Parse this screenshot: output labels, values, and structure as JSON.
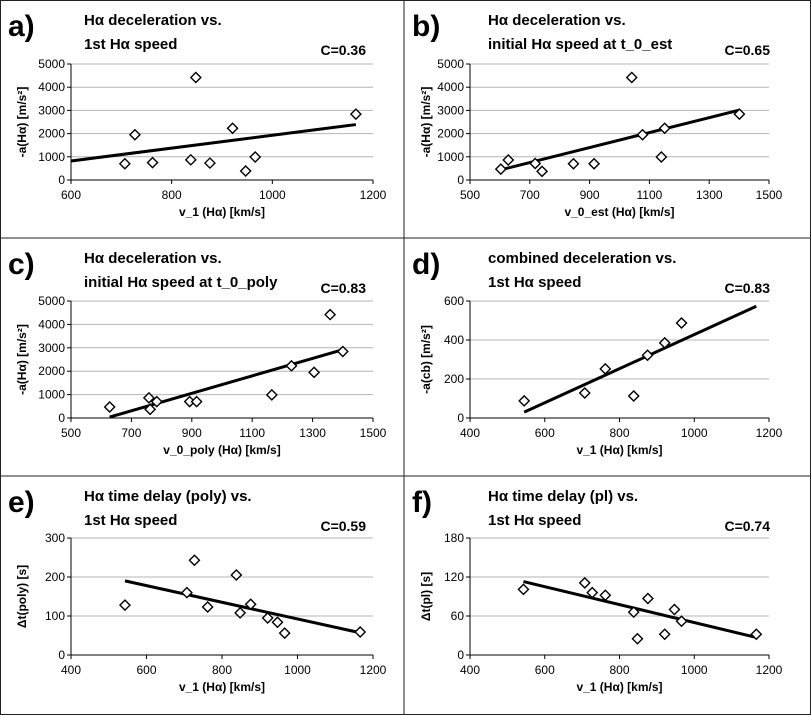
{
  "colors": {
    "background": "#ffffff",
    "ink": "#000000",
    "grid": "#b4b4b4",
    "marker_fill": "#ffffff"
  },
  "chart_data": [
    {
      "panel": "a)",
      "type": "scatter",
      "title_lines": [
        "Hα deceleration vs.",
        "1st Hα speed"
      ],
      "correlation": "C=0.36",
      "xlabel": "v_1 (Hα) [km/s]",
      "ylabel": "-a(Hα) [m/s²]",
      "xlim": [
        600,
        1200
      ],
      "ylim": [
        0,
        5000
      ],
      "xticks": [
        600,
        800,
        1000,
        1200
      ],
      "yticks": [
        0,
        1000,
        2000,
        3000,
        4000,
        5000
      ],
      "grid": "horizontal",
      "points": [
        [
          707,
          700
        ],
        [
          727,
          1950
        ],
        [
          762,
          750
        ],
        [
          838,
          870
        ],
        [
          848,
          4420
        ],
        [
          876,
          730
        ],
        [
          921,
          2230
        ],
        [
          947,
          390
        ],
        [
          966,
          990
        ],
        [
          1166,
          2840
        ]
      ],
      "fit_line": [
        [
          600,
          820
        ],
        [
          1166,
          2390
        ]
      ]
    },
    {
      "panel": "b)",
      "type": "scatter",
      "title_lines": [
        "Hα deceleration vs.",
        "initial Hα speed at t_0_est"
      ],
      "correlation": "C=0.65",
      "xlabel": "v_0_est (Hα) [km/s]",
      "ylabel": "-a(Hα) [m/s²]",
      "xlim": [
        500,
        1500
      ],
      "ylim": [
        0,
        5000
      ],
      "xticks": [
        500,
        700,
        900,
        1100,
        1300,
        1500
      ],
      "yticks": [
        0,
        1000,
        2000,
        3000,
        4000,
        5000
      ],
      "grid": "horizontal",
      "points": [
        [
          603,
          470
        ],
        [
          628,
          860
        ],
        [
          718,
          710
        ],
        [
          741,
          370
        ],
        [
          846,
          700
        ],
        [
          915,
          700
        ],
        [
          1041,
          4420
        ],
        [
          1077,
          1950
        ],
        [
          1140,
          990
        ],
        [
          1151,
          2230
        ],
        [
          1401,
          2840
        ]
      ],
      "fit_line": [
        [
          600,
          430
        ],
        [
          1400,
          3010
        ]
      ]
    },
    {
      "panel": "c)",
      "type": "scatter",
      "title_lines": [
        "Hα deceleration vs.",
        "initial Hα speed at t_0_poly"
      ],
      "correlation": "C=0.83",
      "xlabel": "v_0_poly (Hα) [km/s]",
      "ylabel": "-a(Hα) [m/s²]",
      "xlim": [
        500,
        1500
      ],
      "ylim": [
        0,
        5000
      ],
      "xticks": [
        500,
        700,
        900,
        1100,
        1300,
        1500
      ],
      "yticks": [
        0,
        1000,
        2000,
        3000,
        4000,
        5000
      ],
      "grid": "horizontal",
      "points": [
        [
          628,
          470
        ],
        [
          758,
          860
        ],
        [
          762,
          370
        ],
        [
          784,
          700
        ],
        [
          893,
          700
        ],
        [
          916,
          700
        ],
        [
          1165,
          990
        ],
        [
          1230,
          2230
        ],
        [
          1305,
          1950
        ],
        [
          1358,
          4420
        ],
        [
          1400,
          2840
        ]
      ],
      "fit_line": [
        [
          628,
          40
        ],
        [
          1400,
          2920
        ]
      ]
    },
    {
      "panel": "d)",
      "type": "scatter",
      "title_lines": [
        "combined deceleration vs.",
        "1st Hα speed"
      ],
      "correlation": "C=0.83",
      "xlabel": "v_1 (Hα) [km/s]",
      "ylabel": "-a(cb) [m/s²]",
      "xlim": [
        400,
        1200
      ],
      "ylim": [
        0,
        600
      ],
      "xticks": [
        400,
        600,
        800,
        1000,
        1200
      ],
      "yticks": [
        0,
        200,
        400,
        600
      ],
      "grid": "horizontal",
      "points": [
        [
          545,
          88
        ],
        [
          707,
          128
        ],
        [
          762,
          252
        ],
        [
          838,
          113
        ],
        [
          875,
          322
        ],
        [
          921,
          385
        ],
        [
          966,
          487
        ]
      ],
      "fit_line": [
        [
          545,
          30
        ],
        [
          1166,
          573
        ]
      ]
    },
    {
      "panel": "e)",
      "type": "scatter",
      "title_lines": [
        "Hα time delay (poly) vs.",
        "1st Hα speed"
      ],
      "correlation": "C=0.59",
      "xlabel": "v_1 (Hα) [km/s]",
      "ylabel": "Δt(poly) [s]",
      "xlim": [
        400,
        1200
      ],
      "ylim": [
        0,
        300
      ],
      "xticks": [
        400,
        600,
        800,
        1000,
        1200
      ],
      "yticks": [
        0,
        100,
        200,
        300
      ],
      "grid": "horizontal",
      "points": [
        [
          543,
          128
        ],
        [
          707,
          160
        ],
        [
          727,
          243
        ],
        [
          762,
          123
        ],
        [
          838,
          205
        ],
        [
          848,
          108
        ],
        [
          876,
          130
        ],
        [
          921,
          95
        ],
        [
          947,
          84
        ],
        [
          966,
          56
        ],
        [
          1166,
          59
        ]
      ],
      "fit_line": [
        [
          543,
          190
        ],
        [
          1166,
          57
        ]
      ]
    },
    {
      "panel": "f)",
      "type": "scatter",
      "title_lines": [
        "Hα time delay (pl) vs.",
        "1st Hα speed"
      ],
      "correlation": "C=0.74",
      "xlabel": "v_1 (Hα) [km/s]",
      "ylabel": "Δt(pl) [s]",
      "xlim": [
        400,
        1200
      ],
      "ylim": [
        0,
        180
      ],
      "xticks": [
        400,
        600,
        800,
        1000,
        1200
      ],
      "yticks": [
        0,
        60,
        120,
        180
      ],
      "grid": "horizontal",
      "points": [
        [
          543,
          101
        ],
        [
          707,
          111
        ],
        [
          727,
          96
        ],
        [
          762,
          92
        ],
        [
          838,
          66
        ],
        [
          848,
          25
        ],
        [
          876,
          87
        ],
        [
          921,
          32
        ],
        [
          947,
          70
        ],
        [
          966,
          52
        ],
        [
          1166,
          32
        ]
      ],
      "fit_line": [
        [
          543,
          113
        ],
        [
          1166,
          27
        ]
      ]
    }
  ]
}
